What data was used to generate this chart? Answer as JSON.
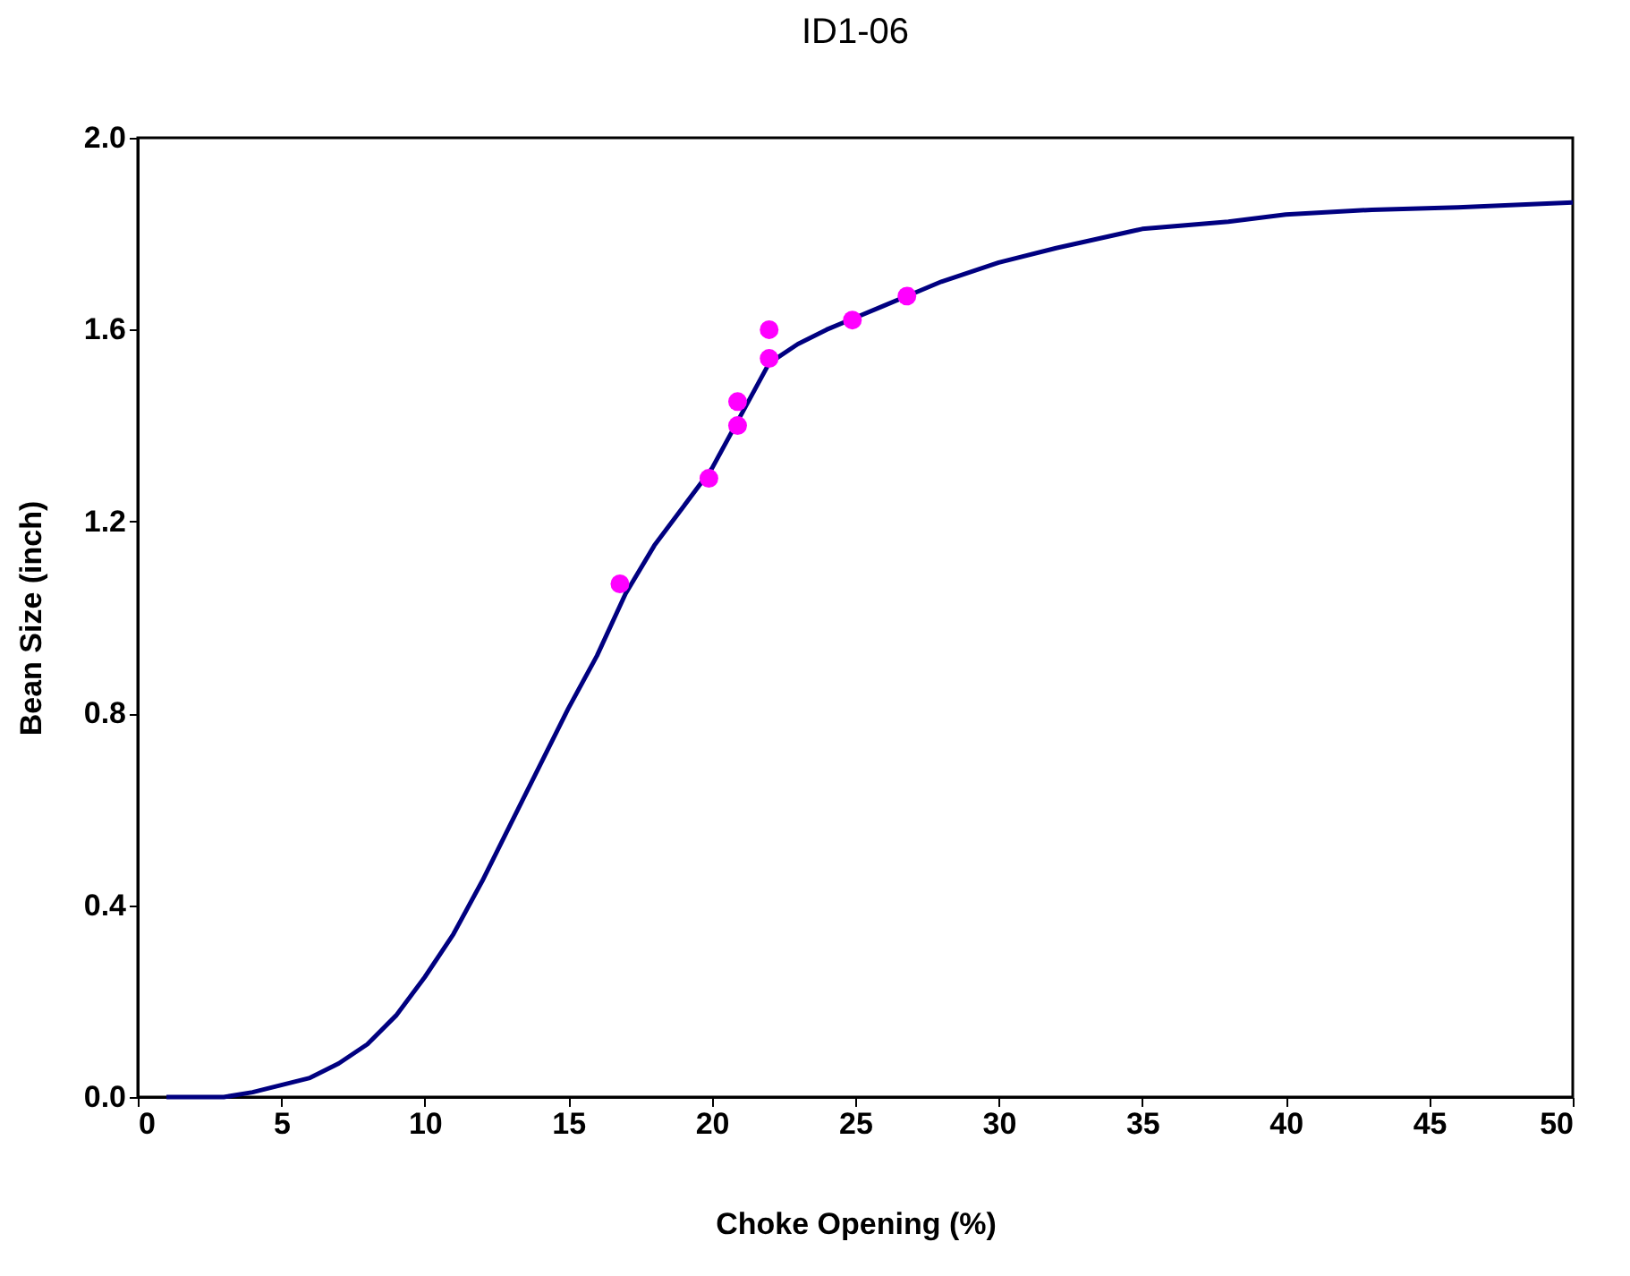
{
  "chart_data": {
    "type": "line",
    "title": "ID1-06",
    "xlabel": "Choke Opening (%)",
    "ylabel": "Bean Size (inch)",
    "xlim": [
      0,
      50
    ],
    "xticks": [
      0,
      5,
      10,
      15,
      20,
      25,
      30,
      35,
      40,
      45,
      50
    ],
    "ylim": [
      0,
      2.0
    ],
    "yticks": [
      {
        "value": 0,
        "label": "0.0"
      },
      {
        "value": 0.4,
        "label": "0.4"
      },
      {
        "value": 0.8,
        "label": "0.8"
      },
      {
        "value": 1.2,
        "label": "1.2"
      },
      {
        "value": 1.6,
        "label": "1.6"
      },
      {
        "value": 2.0,
        "label": "2.0"
      }
    ],
    "grid": false,
    "series": [
      {
        "type": "line",
        "color": "#000080",
        "marker": "none",
        "line_style": "solid",
        "x": [
          1,
          3,
          4,
          5,
          6,
          7,
          8,
          9,
          10,
          11,
          12,
          13,
          14,
          15,
          16,
          17,
          18,
          19,
          20,
          21,
          22,
          23,
          24,
          25,
          26,
          27,
          28,
          30,
          32,
          35,
          38,
          40,
          43,
          46,
          50
        ],
        "values": [
          0,
          0,
          0.01,
          0.025,
          0.04,
          0.07,
          0.11,
          0.17,
          0.25,
          0.34,
          0.45,
          0.57,
          0.69,
          0.81,
          0.92,
          1.05,
          1.15,
          1.23,
          1.31,
          1.42,
          1.53,
          1.57,
          1.6,
          1.625,
          1.65,
          1.675,
          1.7,
          1.74,
          1.77,
          1.81,
          1.825,
          1.84,
          1.85,
          1.855,
          1.865
        ]
      },
      {
        "type": "scatter",
        "color": "#ff00ff",
        "marker": "circle",
        "x": [
          16.8,
          19.9,
          20.9,
          20.9,
          22,
          22,
          24.9,
          26.8
        ],
        "values": [
          1.07,
          1.29,
          1.45,
          1.4,
          1.6,
          1.54,
          1.62,
          1.67
        ]
      }
    ]
  }
}
